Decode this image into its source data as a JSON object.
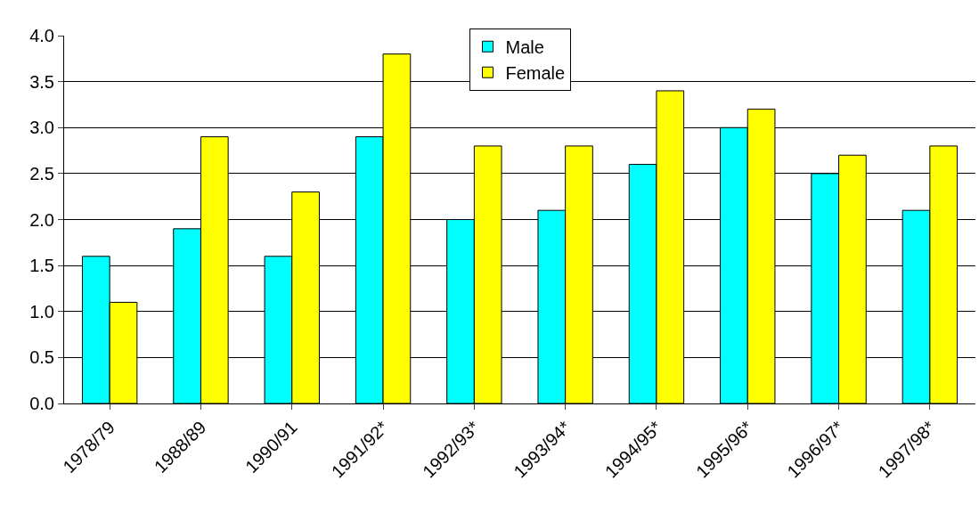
{
  "chart_data": {
    "type": "bar",
    "categories": [
      "1978/79",
      "1988/89",
      "1990/91",
      "1991/92*",
      "1992/93*",
      "1993/94*",
      "1994/95*",
      "1995/96*",
      "1996/97*",
      "1997/98*"
    ],
    "series": [
      {
        "name": "Male",
        "color": "#00ffff",
        "values": [
          1.6,
          1.9,
          1.6,
          2.9,
          2.0,
          2.1,
          2.6,
          3.0,
          2.5,
          2.1
        ]
      },
      {
        "name": "Female",
        "color": "#ffff00",
        "values": [
          1.1,
          2.9,
          2.3,
          3.8,
          2.8,
          2.8,
          3.4,
          3.2,
          2.7,
          2.8
        ]
      }
    ],
    "ylim": [
      0,
      4
    ],
    "yticks": [
      {
        "value": 0,
        "label": "0.0"
      },
      {
        "value": 0.5,
        "label": "0.5"
      },
      {
        "value": 1,
        "label": "1.0"
      },
      {
        "value": 1.5,
        "label": "1.5"
      },
      {
        "value": 2,
        "label": "2.0"
      },
      {
        "value": 2.5,
        "label": "2.5"
      },
      {
        "value": 3,
        "label": "3.0"
      },
      {
        "value": 3.5,
        "label": "3.5"
      },
      {
        "value": 4,
        "label": "4.0"
      }
    ],
    "grid": "y",
    "legend": "top"
  }
}
